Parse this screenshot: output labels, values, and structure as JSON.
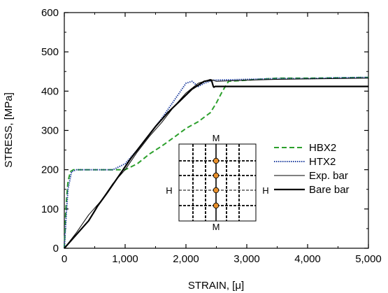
{
  "chart_data": {
    "type": "line",
    "xlabel": "STRAIN,  [μ]",
    "ylabel": "STRESS,  [MPa]",
    "xlim": [
      0,
      5000
    ],
    "ylim": [
      0,
      600
    ],
    "x_ticks": [
      0,
      1000,
      2000,
      3000,
      4000,
      5000
    ],
    "x_tick_labels": [
      "0",
      "1,000",
      "2,000",
      "3,000",
      "4,000",
      "5,000"
    ],
    "y_ticks": [
      0,
      100,
      200,
      300,
      400,
      500,
      600
    ],
    "y_tick_labels": [
      "0",
      "100",
      "200",
      "300",
      "400",
      "500",
      "600"
    ],
    "grid": false,
    "legend_position": "right",
    "series": [
      {
        "name": "HBX2",
        "color": "#2ca02c",
        "style": "dashed",
        "points": [
          [
            0,
            0
          ],
          [
            25,
            100
          ],
          [
            60,
            170
          ],
          [
            100,
            195
          ],
          [
            150,
            200
          ],
          [
            300,
            200
          ],
          [
            500,
            200
          ],
          [
            700,
            200
          ],
          [
            850,
            200
          ],
          [
            1000,
            200
          ],
          [
            1200,
            215
          ],
          [
            1400,
            240
          ],
          [
            1600,
            260
          ],
          [
            1800,
            282
          ],
          [
            2000,
            305
          ],
          [
            2200,
            322
          ],
          [
            2400,
            345
          ],
          [
            2500,
            370
          ],
          [
            2600,
            400
          ],
          [
            2700,
            425
          ],
          [
            3000,
            428
          ],
          [
            3500,
            433
          ],
          [
            4000,
            433
          ],
          [
            4500,
            434
          ],
          [
            5000,
            435
          ]
        ]
      },
      {
        "name": "HTX2",
        "color": "#1f3f9f",
        "style": "dotted",
        "points": [
          [
            0,
            0
          ],
          [
            30,
            80
          ],
          [
            60,
            150
          ],
          [
            120,
            195
          ],
          [
            200,
            200
          ],
          [
            400,
            200
          ],
          [
            800,
            200
          ],
          [
            1000,
            215
          ],
          [
            1200,
            250
          ],
          [
            1400,
            290
          ],
          [
            1600,
            330
          ],
          [
            1800,
            375
          ],
          [
            2000,
            420
          ],
          [
            2100,
            425
          ],
          [
            2200,
            412
          ],
          [
            2300,
            420
          ],
          [
            2450,
            428
          ],
          [
            3000,
            430
          ],
          [
            3500,
            432
          ],
          [
            4000,
            432
          ],
          [
            4500,
            434
          ],
          [
            5000,
            435
          ]
        ]
      },
      {
        "name": "Exp. bar",
        "color": "#000000",
        "style": "thin",
        "points": [
          [
            0,
            0
          ],
          [
            200,
            40
          ],
          [
            400,
            85
          ],
          [
            600,
            120
          ],
          [
            800,
            165
          ],
          [
            1000,
            200
          ],
          [
            1200,
            245
          ],
          [
            1400,
            285
          ],
          [
            1600,
            320
          ],
          [
            1800,
            360
          ],
          [
            2000,
            395
          ],
          [
            2200,
            420
          ],
          [
            2400,
            430
          ],
          [
            2500,
            425
          ],
          [
            3000,
            428
          ],
          [
            3500,
            430
          ],
          [
            4000,
            431
          ],
          [
            4500,
            432
          ],
          [
            5000,
            433
          ]
        ]
      },
      {
        "name": "Bare bar",
        "color": "#000000",
        "style": "thick",
        "points": [
          [
            0,
            0
          ],
          [
            200,
            35
          ],
          [
            400,
            70
          ],
          [
            500,
            95
          ],
          [
            550,
            108
          ],
          [
            700,
            140
          ],
          [
            900,
            185
          ],
          [
            1100,
            230
          ],
          [
            1300,
            270
          ],
          [
            1500,
            310
          ],
          [
            1700,
            345
          ],
          [
            1900,
            375
          ],
          [
            2100,
            405
          ],
          [
            2300,
            425
          ],
          [
            2420,
            428
          ],
          [
            2450,
            412
          ],
          [
            2460,
            410
          ],
          [
            2480,
            412
          ],
          [
            3000,
            412
          ],
          [
            4000,
            412
          ],
          [
            5000,
            412
          ]
        ]
      }
    ],
    "inset": {
      "labels": {
        "top": "M",
        "bottom": "M",
        "left": "H",
        "right": "H"
      },
      "marker_color": "#e8902c"
    }
  }
}
